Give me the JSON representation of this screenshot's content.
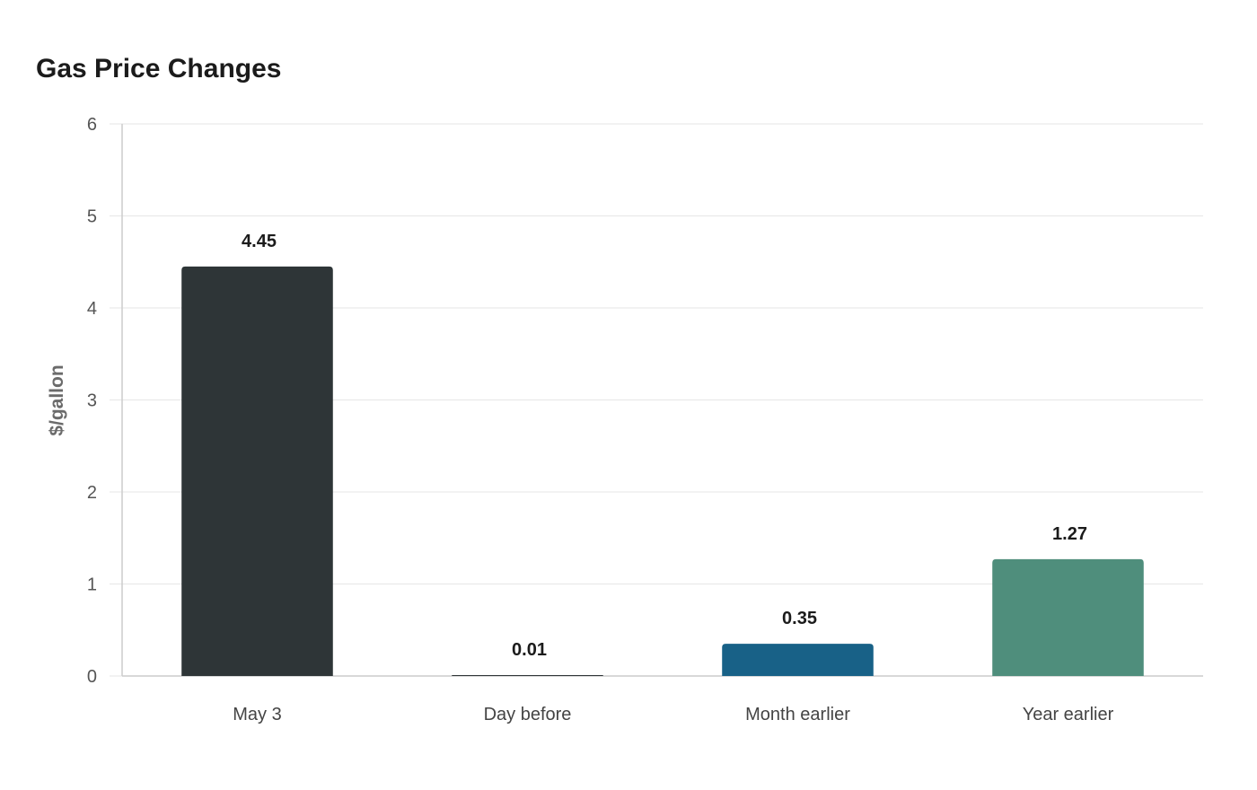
{
  "chart_data": {
    "type": "bar",
    "title": "Gas Price Changes",
    "xlabel": "",
    "ylabel": "$/gallon",
    "categories": [
      "May 3",
      "Day before",
      "Month earlier",
      "Year earlier"
    ],
    "values": [
      4.45,
      0.01,
      0.35,
      1.27
    ],
    "value_labels": [
      "4.45",
      "0.01",
      "0.35",
      "1.27"
    ],
    "colors": [
      "#2e3537",
      "#2e3537",
      "#186187",
      "#4f8e7c"
    ],
    "ylim": [
      0,
      6
    ],
    "yticks": [
      0,
      1,
      2,
      3,
      4,
      5,
      6
    ],
    "grid": true,
    "legend": "none"
  }
}
